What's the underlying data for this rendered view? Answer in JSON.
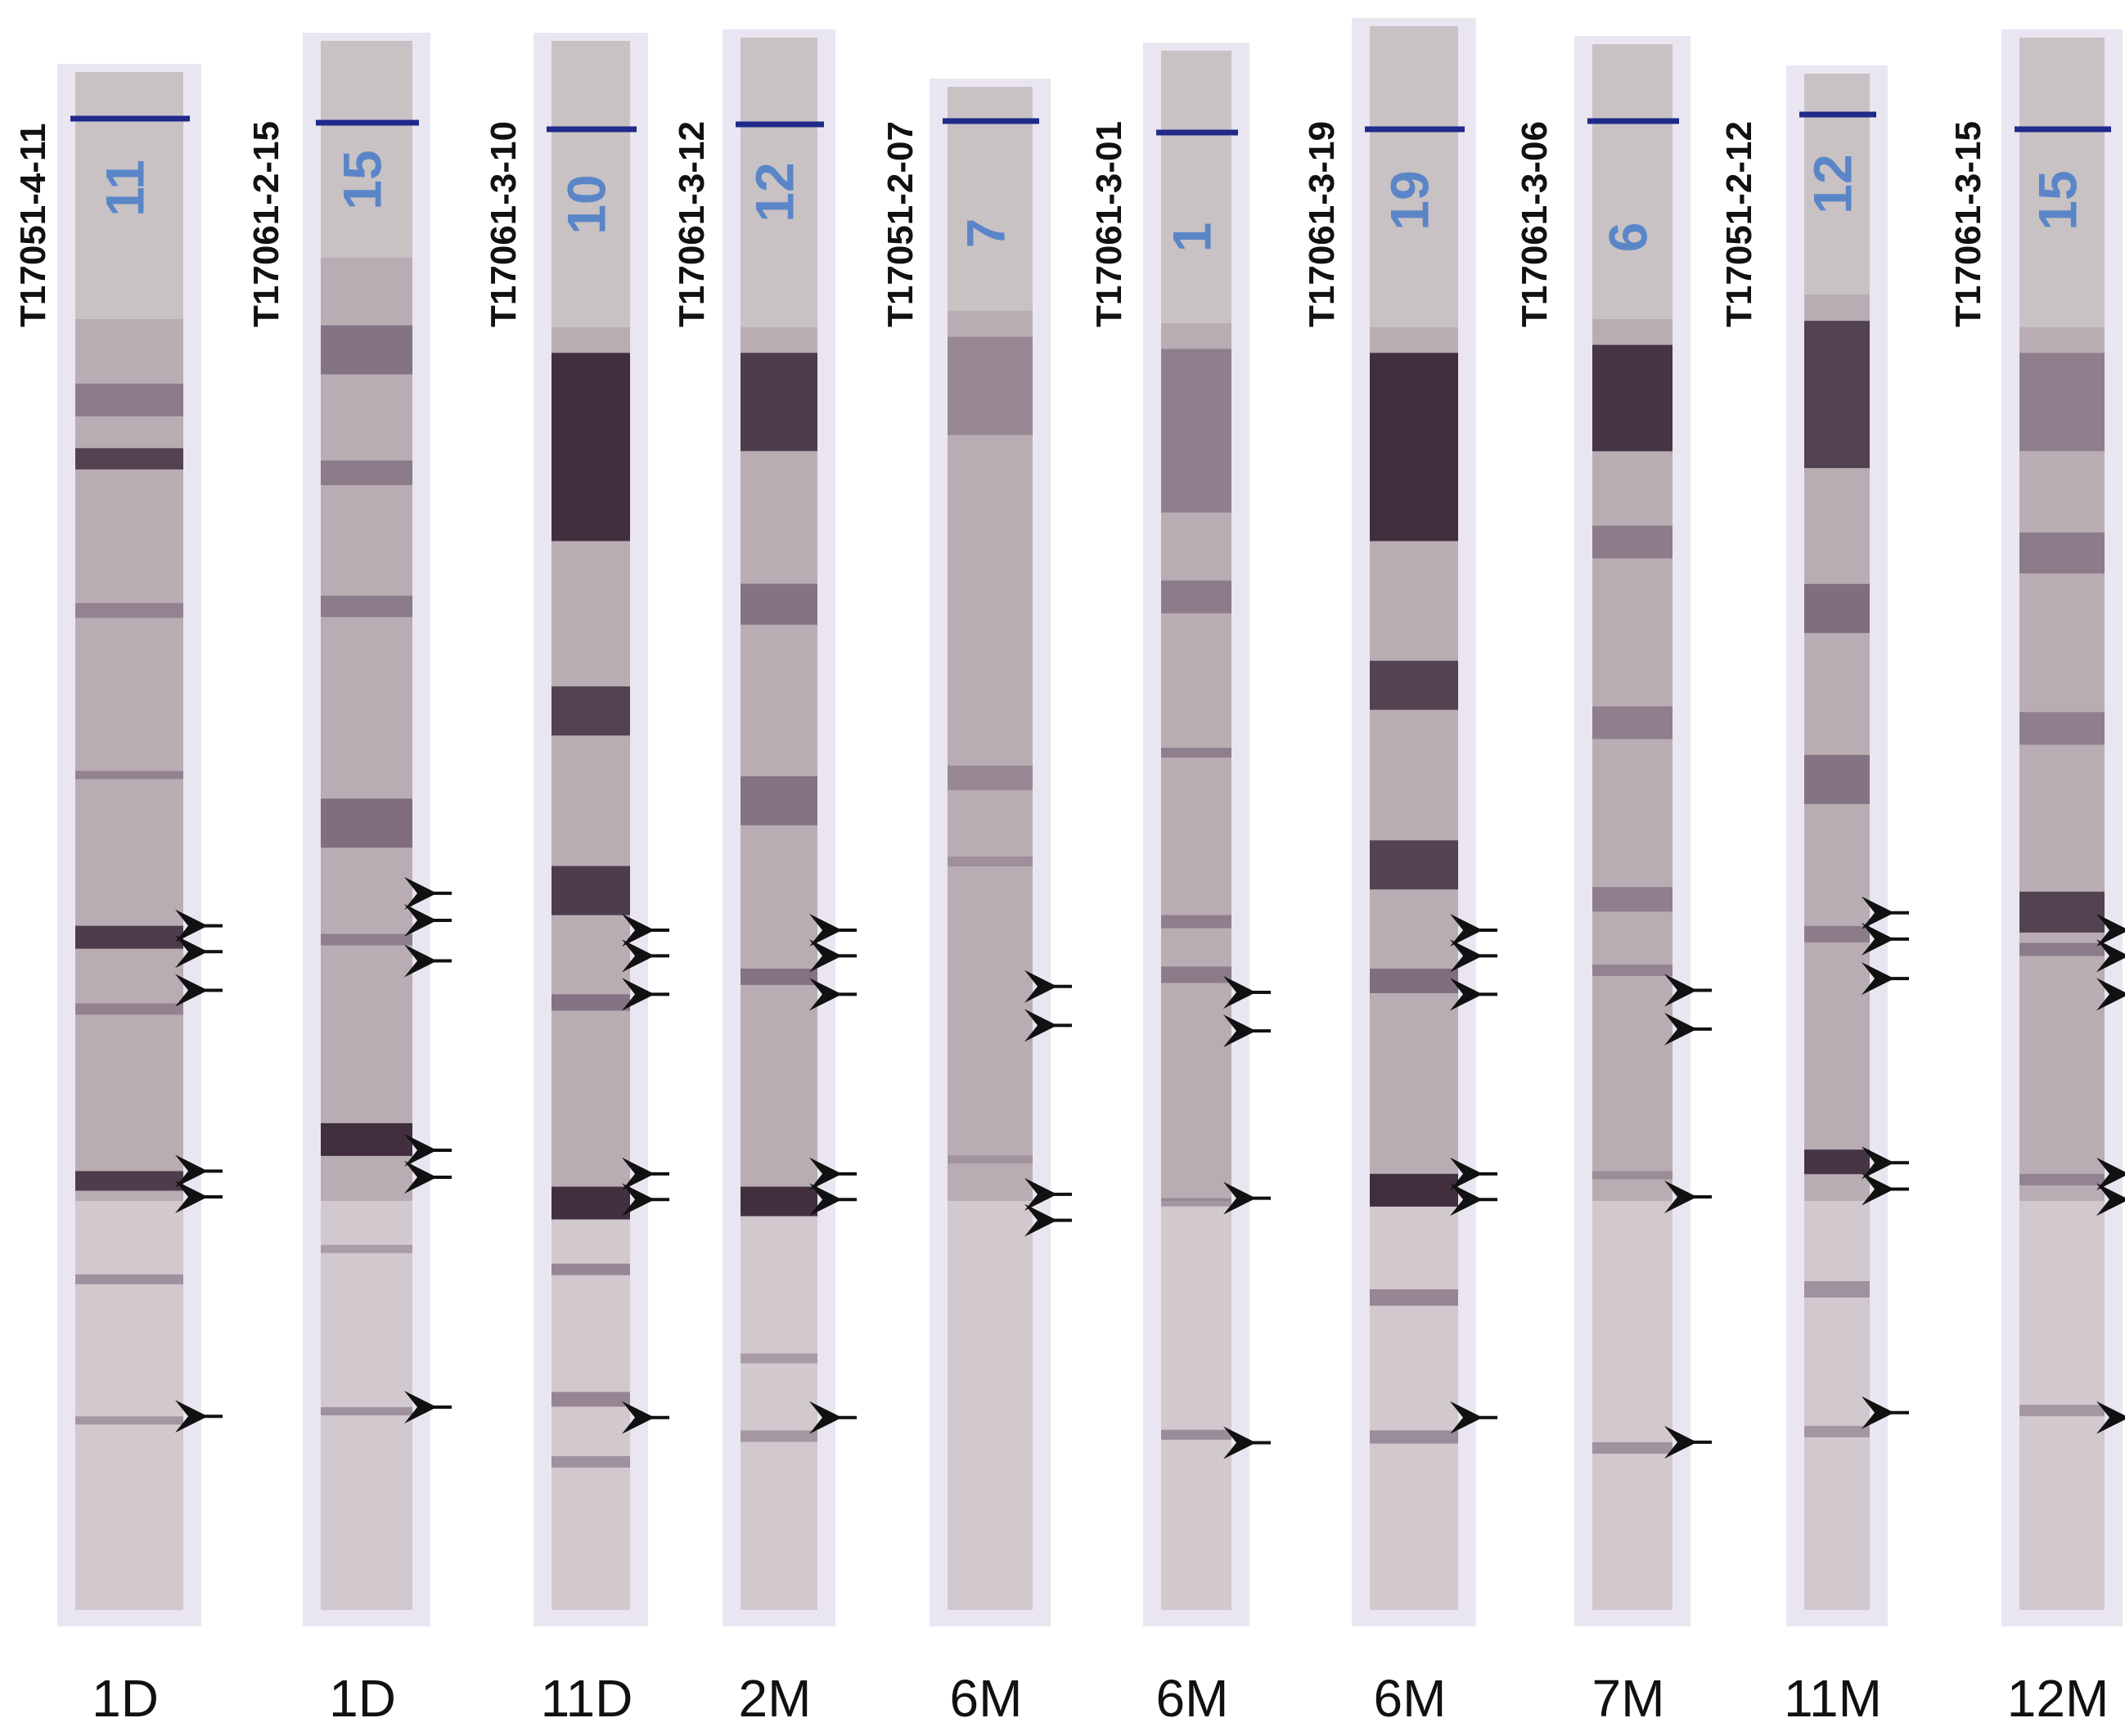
{
  "strips": [
    {
      "sample_id": "T17051-4-11",
      "strip_number": "11",
      "timepoint": "1D",
      "arrows": 6
    },
    {
      "sample_id": "T17061-2-15",
      "strip_number": "15",
      "timepoint": "1D",
      "arrows": 6
    },
    {
      "sample_id": "T17061-3-10",
      "strip_number": "10",
      "timepoint": "11D",
      "arrows": 6
    },
    {
      "sample_id": "T17061-3-12",
      "strip_number": "12",
      "timepoint": "2M",
      "arrows": 6
    },
    {
      "sample_id": "T17051-2-07",
      "strip_number": "7",
      "timepoint": "6M",
      "arrows": 4
    },
    {
      "sample_id": "T17061-3-01",
      "strip_number": "1",
      "timepoint": "6M",
      "arrows": 4
    },
    {
      "sample_id": "T17061-3-19",
      "strip_number": "19",
      "timepoint": "6M",
      "arrows": 6
    },
    {
      "sample_id": "T17061-3-06",
      "strip_number": "6",
      "timepoint": "7M",
      "arrows": 4
    },
    {
      "sample_id": "T17051-2-12",
      "strip_number": "12",
      "timepoint": "11M",
      "arrows": 6
    },
    {
      "sample_id": "T17061-3-15",
      "strip_number": "15",
      "timepoint": "12M",
      "arrows": 6
    }
  ],
  "colors": {
    "strip_top": "#c8c2c4",
    "strip_body": "#b9adb4",
    "band_dark": "#3a2838",
    "band_mid": "#6e5a6c",
    "marker_line": "#1f2a8a",
    "strip_number": "#5a86c8",
    "arrow": "#111111"
  }
}
